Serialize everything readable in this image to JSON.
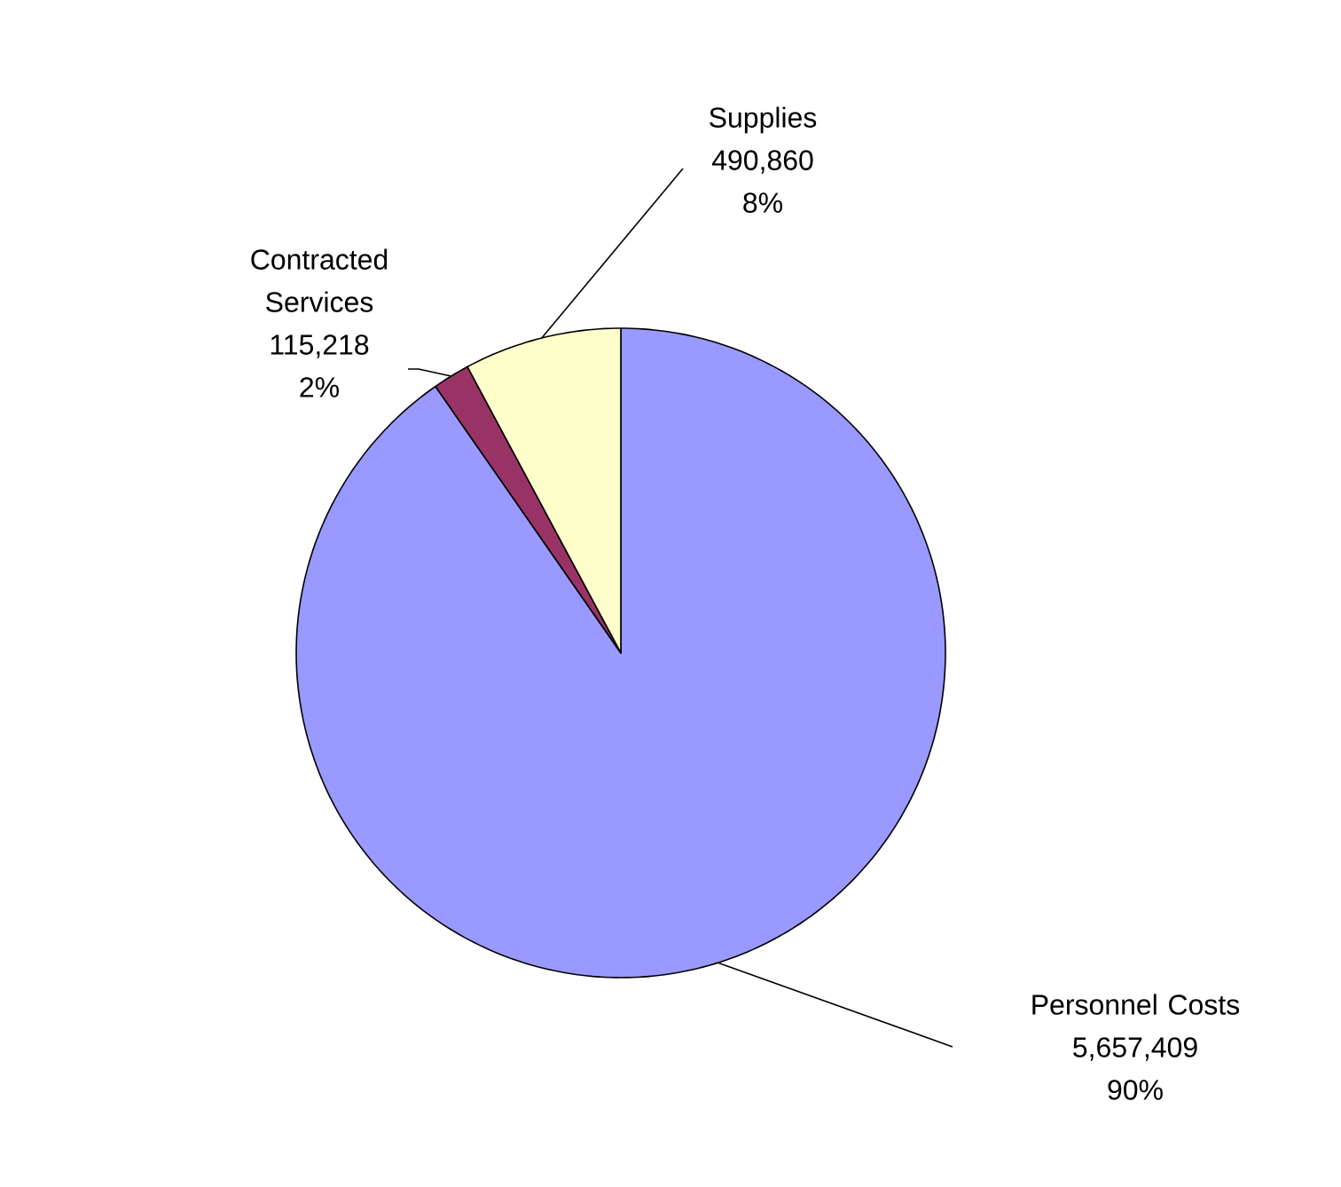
{
  "chart_data": {
    "type": "pie",
    "categories": [
      "Personnel Costs",
      "Contracted Services",
      "Supplies"
    ],
    "values": [
      5657409,
      115218,
      490860
    ],
    "value_labels": [
      "5,657,409",
      "115,218",
      "490,860"
    ],
    "annotations": [
      "90%",
      "2%",
      "8%"
    ],
    "colors": [
      "#9999ff",
      "#993366",
      "#ffffcc"
    ]
  }
}
